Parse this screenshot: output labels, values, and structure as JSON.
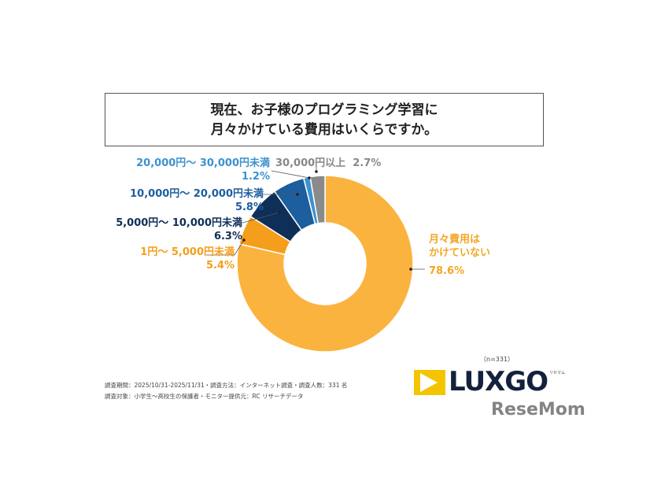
{
  "title": {
    "line1": "現在、お子様のプログラミング学習に",
    "line2": "月々かけている費用はいくらですか。"
  },
  "chart_data": {
    "type": "pie",
    "variant": "donut",
    "title": "現在、お子様のプログラミング学習に月々かけている費用はいくらですか。",
    "categories": [
      "月々費用はかけていない",
      "1円～ 5,000円未満",
      "5,000円～ 10,000円未満",
      "10,000円～ 20,000円未満",
      "20,000円～ 30,000円未満",
      "30,000円以上"
    ],
    "values": [
      78.6,
      5.4,
      6.3,
      5.8,
      1.2,
      2.7
    ],
    "value_labels": [
      "78.6%",
      "5.4%",
      "6.3%",
      "5.8%",
      "1.2%",
      "2.7%"
    ],
    "colors": [
      "#FBB33F",
      "#F59E1B",
      "#0E2F57",
      "#1C5E9E",
      "#3C92D0",
      "#8A8A8A"
    ]
  },
  "labels": {
    "none_l1": "月々費用は",
    "none_l2": "かけていない"
  },
  "sample": "（n=331）",
  "footnotes": [
    "調査期間：2025/10/31-2025/11/31・調査方法：インターネット調査・調査人数：331 名",
    "調査対象：小学生～高校生の保護者・モニター提供元：RC リサーチデータ"
  ],
  "logo": {
    "text": "LUXGO",
    "sub": "リセマム",
    "watermark": "ReseMom"
  }
}
